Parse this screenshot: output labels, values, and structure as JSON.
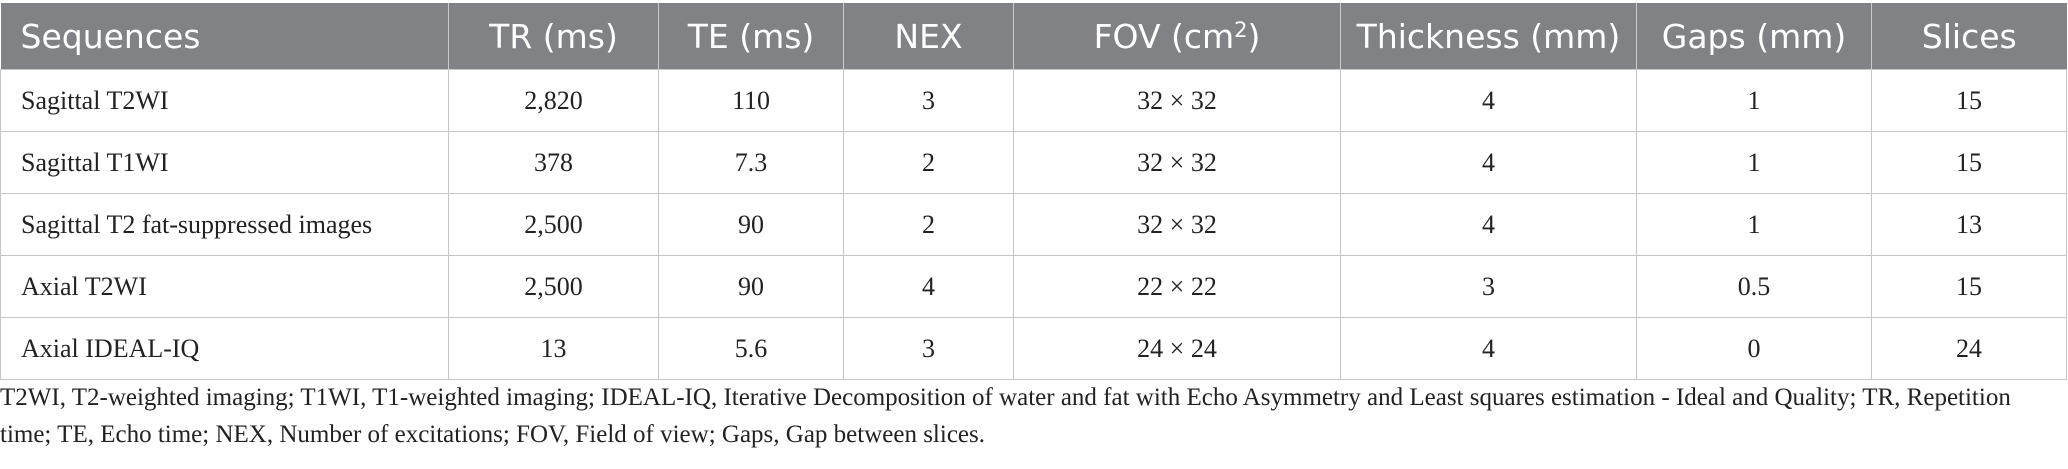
{
  "table": {
    "headers": [
      {
        "label": "Sequences"
      },
      {
        "label": "TR (ms)"
      },
      {
        "label": "TE (ms)"
      },
      {
        "label": "NEX"
      },
      {
        "label": "FOV (cm",
        "sup": "2",
        "suffix": ")"
      },
      {
        "label": "Thickness (mm)"
      },
      {
        "label": "Gaps (mm)"
      },
      {
        "label": "Slices"
      }
    ],
    "rows": [
      [
        "Sagittal T2WI",
        "2,820",
        "110",
        "3",
        "32 × 32",
        "4",
        "1",
        "15"
      ],
      [
        "Sagittal T1WI",
        "378",
        "7.3",
        "2",
        "32 × 32",
        "4",
        "1",
        "15"
      ],
      [
        "Sagittal T2 fat-suppressed images",
        "2,500",
        "90",
        "2",
        "32 × 32",
        "4",
        "1",
        "13"
      ],
      [
        "Axial T2WI",
        "2,500",
        "90",
        "4",
        "22 × 22",
        "3",
        "0.5",
        "15"
      ],
      [
        "Axial IDEAL-IQ",
        "13",
        "5.6",
        "3",
        "24 × 24",
        "4",
        "0",
        "24"
      ]
    ]
  },
  "footnote": "T2WI, T2-weighted imaging; T1WI, T1-weighted imaging; IDEAL-IQ, Iterative Decomposition of water and fat with Echo Asymmetry and Least squares estimation - Ideal and Quality; TR, Repetition time; TE, Echo time; NEX, Number of excitations; FOV, Field of view; Gaps, Gap between slices."
}
